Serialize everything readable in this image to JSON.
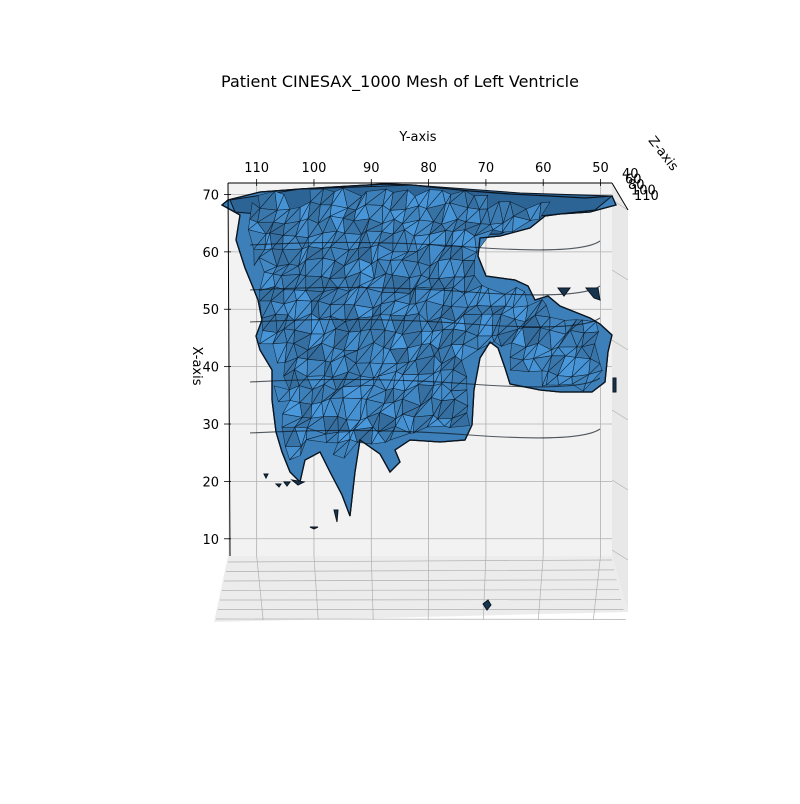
{
  "chart_data": {
    "type": "surface3d",
    "title": "Patient CINESAX_1000 Mesh of Left Ventricle",
    "y_axis": {
      "label": "Y-axis",
      "ticks": [
        110,
        100,
        90,
        80,
        70,
        60,
        50
      ],
      "range": [
        115,
        48
      ]
    },
    "x_axis": {
      "label": "X-axis",
      "ticks": [
        70,
        60,
        50,
        40,
        30,
        20,
        10
      ],
      "range": [
        72,
        7
      ]
    },
    "z_axis": {
      "label": "Z-axis",
      "ticks": [
        40,
        60,
        80,
        100,
        110
      ]
    },
    "grid": true,
    "face_color": "#3d7fb8",
    "edge_color": "#0b1520",
    "pane_color": "#f2f2f2",
    "grid_color": "#b0b0b0"
  }
}
